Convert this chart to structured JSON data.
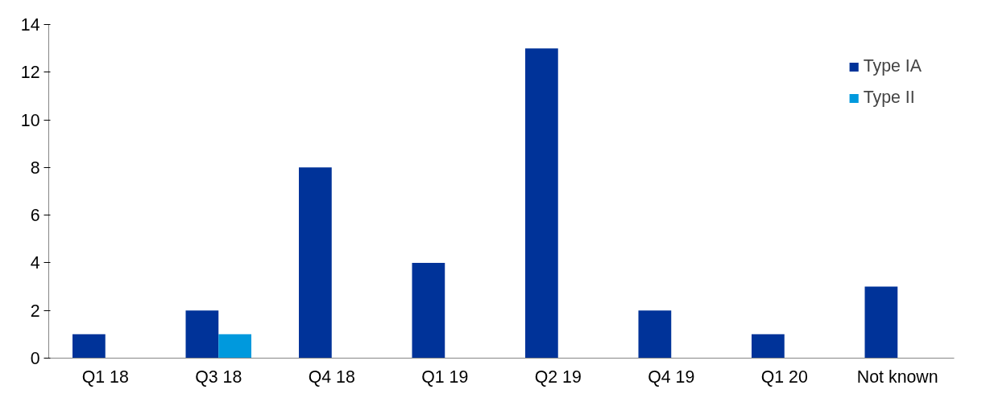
{
  "chart_data": {
    "type": "bar",
    "categories": [
      "Q1 18",
      "Q3 18",
      "Q4 18",
      "Q1 19",
      "Q2 19",
      "Q4 19",
      "Q1 20",
      "Not known"
    ],
    "series": [
      {
        "name": "Type IA",
        "color": "#003399",
        "values": [
          1,
          2,
          8,
          4,
          13,
          2,
          1,
          3
        ]
      },
      {
        "name": "Type II",
        "color": "#0099dd",
        "values": [
          null,
          1,
          null,
          null,
          null,
          null,
          null,
          null
        ]
      }
    ],
    "ylim": [
      0,
      14
    ],
    "yticks": [
      0,
      2,
      4,
      6,
      8,
      10,
      12,
      14
    ],
    "grid": false,
    "legend": "top right"
  }
}
